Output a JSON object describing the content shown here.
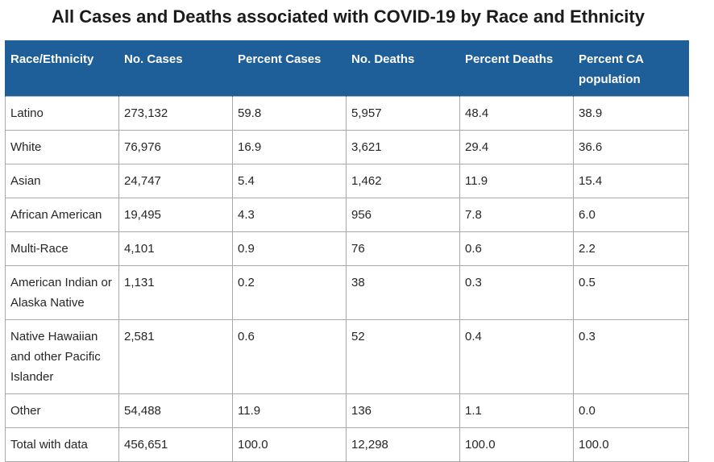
{
  "title": "All Cases and Deaths associated with COVID-19 by Race and Ethnicity",
  "colors": {
    "header_background": "#1f5f99",
    "header_text": "#ffffff",
    "border": "#a9a9a9"
  },
  "table": {
    "headers": [
      "Race/Ethnicity",
      "No. Cases",
      "Percent Cases",
      "No. Deaths",
      "Percent Deaths",
      "Percent CA population"
    ],
    "rows": [
      [
        "Latino",
        "273,132",
        "59.8",
        "5,957",
        "48.4",
        "38.9"
      ],
      [
        "White",
        "76,976",
        "16.9",
        "3,621",
        "29.4",
        "36.6"
      ],
      [
        "Asian",
        "24,747",
        "5.4",
        "1,462",
        "11.9",
        "15.4"
      ],
      [
        "African American",
        "19,495",
        "4.3",
        "956",
        "7.8",
        "6.0"
      ],
      [
        "Multi-Race",
        "4,101",
        "0.9",
        "76",
        "0.6",
        "2.2"
      ],
      [
        "American Indian or Alaska Native",
        "1,131",
        "0.2",
        "38",
        "0.3",
        "0.5"
      ],
      [
        "Native Hawaiian and other Pacific Islander",
        "2,581",
        "0.6",
        "52",
        "0.4",
        "0.3"
      ],
      [
        "Other",
        "54,488",
        "11.9",
        "136",
        "1.1",
        "0.0"
      ],
      [
        "Total with data",
        "456,651",
        "100.0",
        "12,298",
        "100.0",
        "100.0"
      ]
    ]
  }
}
